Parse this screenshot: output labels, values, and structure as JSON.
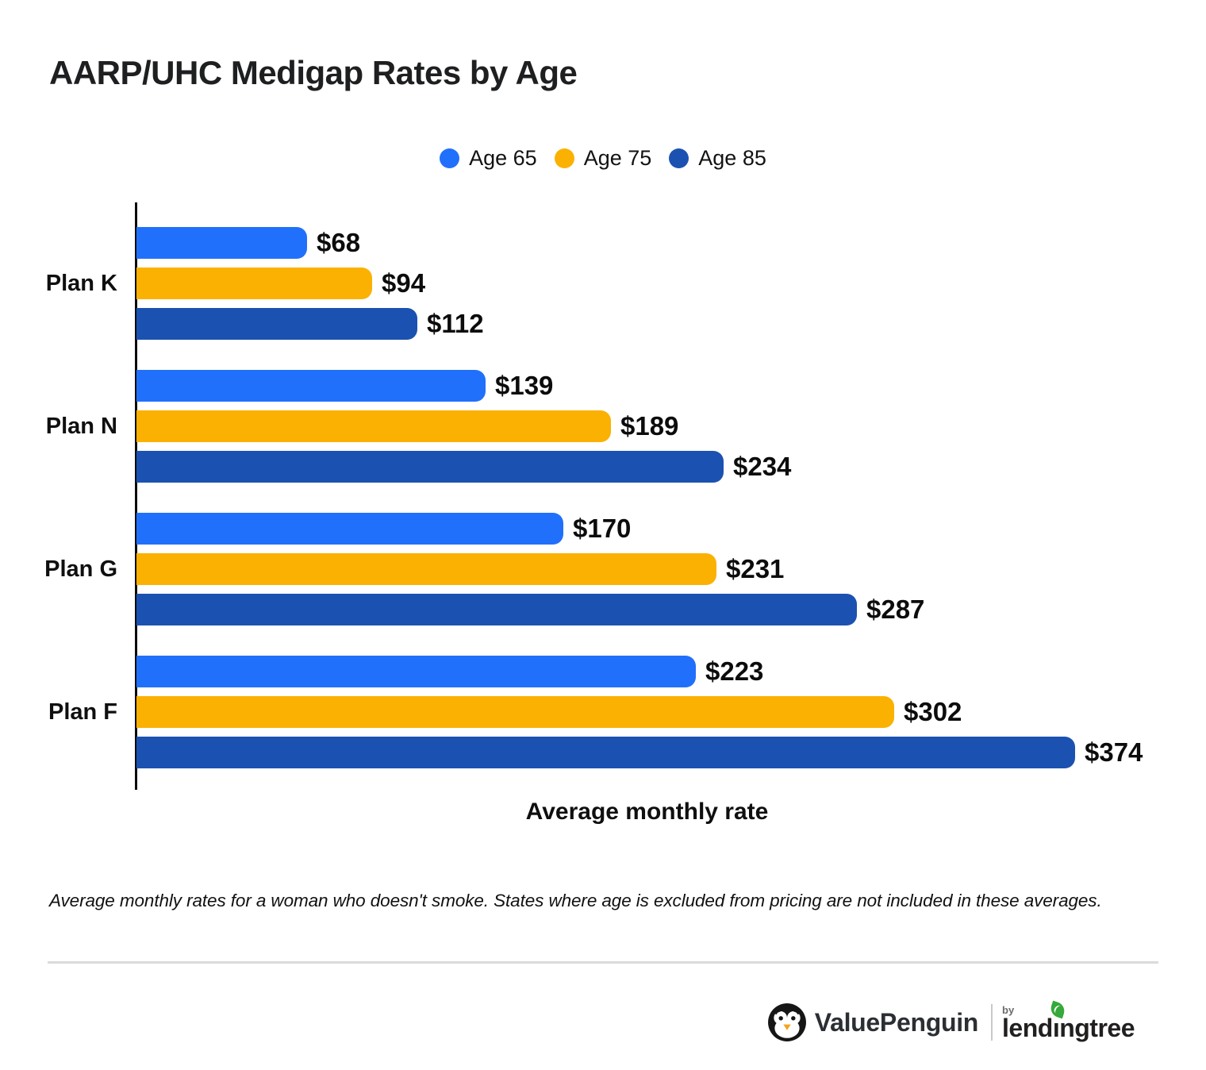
{
  "title": "AARP/UHC Medigap Rates by Age",
  "legend": [
    {
      "label": "Age 65",
      "color": "#2170FC"
    },
    {
      "label": "Age 75",
      "color": "#FBB102"
    },
    {
      "label": "Age 85",
      "color": "#1B52B1"
    }
  ],
  "chart_data": {
    "type": "bar",
    "orientation": "horizontal",
    "title": "AARP/UHC Medigap Rates by Age",
    "categories": [
      "Plan K",
      "Plan N",
      "Plan G",
      "Plan F"
    ],
    "series": [
      {
        "name": "Age 65",
        "color": "#2170FC",
        "values": [
          68,
          139,
          170,
          223
        ]
      },
      {
        "name": "Age 75",
        "color": "#FBB102",
        "values": [
          94,
          189,
          231,
          302
        ]
      },
      {
        "name": "Age 85",
        "color": "#1B52B1",
        "values": [
          112,
          234,
          287,
          374
        ]
      }
    ],
    "value_prefix": "$",
    "xlabel": "Average monthly rate",
    "ylabel": "",
    "xlim": [
      0,
      374
    ],
    "grid": false,
    "legend_position": "top-center",
    "value_labels": "end-of-bar"
  },
  "xlabel": "Average monthly rate",
  "footnote": "Average monthly rates for a woman who doesn't smoke. States where age is excluded from pricing are not included in these averages.",
  "footer": {
    "valuepenguin": "ValuePenguin",
    "by": "by",
    "lendingtree_pre": "lend",
    "lendingtree_i": "ı",
    "lendingtree_post": "ngtree"
  },
  "colors": {
    "age65": "#2170FC",
    "age75": "#FBB102",
    "age85": "#1B52B1",
    "text": "#0f0f0f",
    "divider": "#dbdbdb",
    "leaf_green": "#35a93b"
  }
}
